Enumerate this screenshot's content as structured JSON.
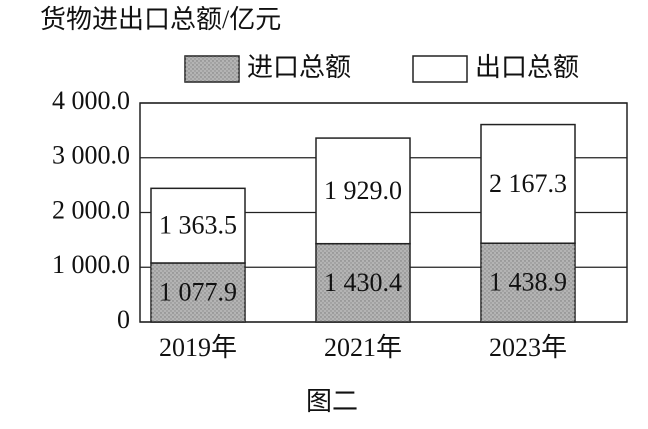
{
  "chart_data": {
    "type": "bar",
    "stacked": true,
    "title": "货物进出口总额/亿元",
    "caption": "图二",
    "categories": [
      "2019年",
      "2021年",
      "2023年"
    ],
    "series": [
      {
        "name": "进口总额",
        "color": "#b4b4b4",
        "values": [
          1077.9,
          1430.4,
          1438.9
        ],
        "value_labels": [
          "1 077.9",
          "1 430.4",
          "1 438.9"
        ]
      },
      {
        "name": "出口总额",
        "color": "#ffffff",
        "values": [
          1363.5,
          1929.0,
          2167.3
        ],
        "value_labels": [
          "1 363.5",
          "1 929.0",
          "2 167.3"
        ]
      }
    ],
    "ylim": [
      0,
      4000
    ],
    "yticks": [
      0,
      {
        "value": 1000,
        "label": "1 000.0"
      },
      {
        "value": 2000,
        "label": "2 000.0"
      },
      {
        "value": 3000,
        "label": "3 000.0"
      },
      {
        "value": 4000,
        "label": "4 000.0"
      }
    ],
    "grid": true
  }
}
